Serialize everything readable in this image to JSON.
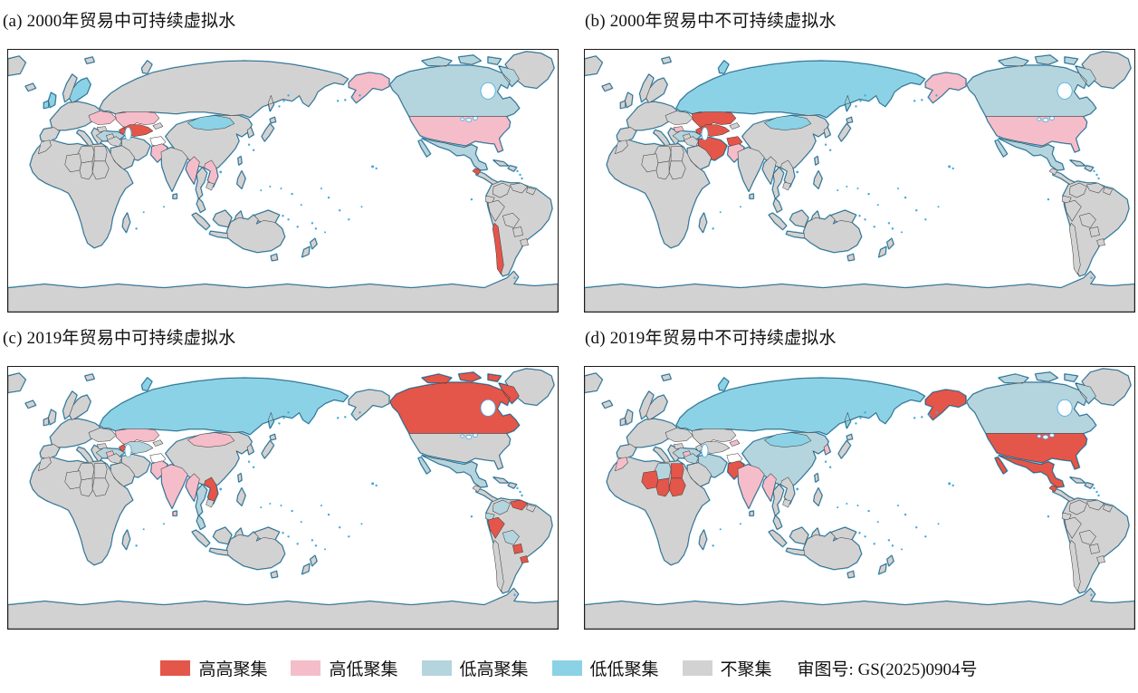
{
  "panels": [
    {
      "id": "a",
      "title": "(a) 2000年贸易中可持续虚拟水",
      "regions": {
        "uk": "ll",
        "ireland": "ll",
        "sweden_finland": "ll",
        "ukraine": "hl",
        "turkey": "lh",
        "kazakhstan": "hl",
        "central_asia": "hh",
        "azerbaijan": "hh",
        "afghanistan": "blank",
        "pakistan": "hl",
        "mongolia": "ll",
        "myanmar": "hl",
        "vietnam_laos": "hl",
        "alaska": "hl",
        "usa": "hl",
        "canada": "lh",
        "mexico": "lh",
        "chile": "hh",
        "guatemala": "hh"
      }
    },
    {
      "id": "b",
      "title": "(b) 2000年贸易中不可持续虚拟水",
      "regions": {
        "russia": "ll",
        "kazakhstan": "hh",
        "central_asia": "hh",
        "azerbaijan": "hh",
        "iran": "hh",
        "afghanistan": "hh",
        "pakistan": "hl",
        "mongolia": "ll",
        "bulgaria": "hl",
        "turkey": "lh",
        "alaska": "hl",
        "usa": "hl",
        "canada": "lh",
        "mexico": "lh"
      }
    },
    {
      "id": "c",
      "title": "(c) 2019年贸易中可持续虚拟水",
      "regions": {
        "russia": "ll",
        "kazakhstan": "hl",
        "mongolia": "hl",
        "central_asia": "lh",
        "azerbaijan": "hh",
        "turkey": "lh",
        "syria": "hl",
        "india": "hl",
        "sri_lanka": "hl",
        "myanmar": "hl",
        "thailand": "lh",
        "malay": "lh",
        "vietnam_laos": "hh",
        "pakistan": "hl",
        "afghanistan": "blank",
        "canada": "hh",
        "mexico": "lh",
        "colombia": "lh",
        "venezuela": "hh",
        "ecuador": "lh",
        "peru": "hh",
        "bolivia": "lh",
        "paraguay": "hh",
        "uruguay": "hh"
      }
    },
    {
      "id": "d",
      "title": "(d) 2019年贸易中不可持续虚拟水",
      "regions": {
        "russia": "ll",
        "china": "lh",
        "mongolia": "ll",
        "kyrgyzstan": "hl",
        "iran": "lh",
        "turkey": "lh",
        "afghanistan": "blank",
        "pakistan": "hh",
        "india": "hl",
        "myanmar": "hl",
        "syria": "hl",
        "iraq": "lh",
        "egypt": "hh",
        "sudan": "hh",
        "chad": "hh",
        "niger": "hh",
        "libya": "lh",
        "morocco": "hl",
        "korea": "hl",
        "alaska": "hh",
        "usa": "hh",
        "canada": "lh",
        "mexico": "hh",
        "guatemala": "hh"
      }
    }
  ],
  "legend": {
    "items": [
      {
        "key": "hh",
        "label": "高高聚集",
        "color": "#E4564A"
      },
      {
        "key": "hl",
        "label": "高低聚集",
        "color": "#F5BDC9"
      },
      {
        "key": "lh",
        "label": "低高聚集",
        "color": "#B4D4DE"
      },
      {
        "key": "ll",
        "label": "低低聚集",
        "color": "#8BD2E6"
      },
      {
        "key": "ns",
        "label": "不聚集",
        "color": "#D2D2D2"
      }
    ],
    "map_approval_number": "审图号: GS(2025)0904号"
  },
  "colors": {
    "hh": "#E4564A",
    "hl": "#F5BDC9",
    "lh": "#B4D4DE",
    "ll": "#8BD2E6",
    "ns": "#D2D2D2",
    "blank": "#FFFFFF",
    "coastline": "#41AADF",
    "border": "#3A3A3A",
    "water": "#FFFFFF"
  },
  "chart_data": {
    "type": "choropleth-map-grid",
    "title": "贸易中虚拟水的空间聚集 (LISA聚类图)",
    "projection": "pacific-centered world map",
    "panels": [
      {
        "label": "(a) 2000年贸易中可持续虚拟水",
        "clusters": {
          "高高聚集": [
            "乌兹别克斯坦/土库曼斯坦",
            "阿塞拜疆",
            "智利",
            "危地马拉"
          ],
          "高低聚集": [
            "哈萨克斯坦",
            "乌克兰",
            "巴基斯坦",
            "缅甸",
            "越南/老挝",
            "美国",
            "阿拉斯加"
          ],
          "低高聚集": [
            "加拿大",
            "墨西哥",
            "土耳其"
          ],
          "低低聚集": [
            "英国",
            "爱尔兰",
            "瑞典/芬兰",
            "蒙古"
          ]
        }
      },
      {
        "label": "(b) 2000年贸易中不可持续虚拟水",
        "clusters": {
          "高高聚集": [
            "哈萨克斯坦",
            "中亚",
            "伊朗",
            "阿富汗",
            "阿塞拜疆"
          ],
          "高低聚集": [
            "巴基斯坦",
            "保加利亚",
            "美国",
            "阿拉斯加"
          ],
          "低高聚集": [
            "加拿大",
            "墨西哥",
            "土耳其"
          ],
          "低低聚集": [
            "俄罗斯",
            "蒙古"
          ]
        }
      },
      {
        "label": "(c) 2019年贸易中可持续虚拟水",
        "clusters": {
          "高高聚集": [
            "加拿大",
            "越南/老挝",
            "秘鲁",
            "委内瑞拉",
            "巴拉圭",
            "乌拉圭",
            "阿塞拜疆"
          ],
          "高低聚集": [
            "哈萨克斯坦",
            "蒙古",
            "印度",
            "巴基斯坦",
            "缅甸",
            "叙利亚",
            "斯里兰卡"
          ],
          "低高聚集": [
            "墨西哥",
            "哥伦比亚",
            "厄瓜多尔",
            "玻利维亚",
            "泰国",
            "土耳其",
            "中亚"
          ],
          "低低聚集": [
            "俄罗斯"
          ]
        }
      },
      {
        "label": "(d) 2019年贸易中不可持续虚拟水",
        "clusters": {
          "高高聚集": [
            "美国",
            "阿拉斯加",
            "墨西哥",
            "危地马拉",
            "巴基斯坦",
            "埃及",
            "苏丹",
            "乍得",
            "尼日尔"
          ],
          "高低聚集": [
            "印度",
            "缅甸",
            "叙利亚",
            "摩洛哥",
            "韩国",
            "吉尔吉斯斯坦"
          ],
          "低高聚集": [
            "加拿大",
            "中国",
            "伊朗",
            "伊拉克",
            "利比亚",
            "土耳其"
          ],
          "低低聚集": [
            "俄罗斯",
            "蒙古"
          ]
        }
      }
    ],
    "legend_categories": [
      "高高聚集",
      "高低聚集",
      "低高聚集",
      "低低聚集",
      "不聚集"
    ],
    "annotation": "审图号: GS(2025)0904号"
  }
}
